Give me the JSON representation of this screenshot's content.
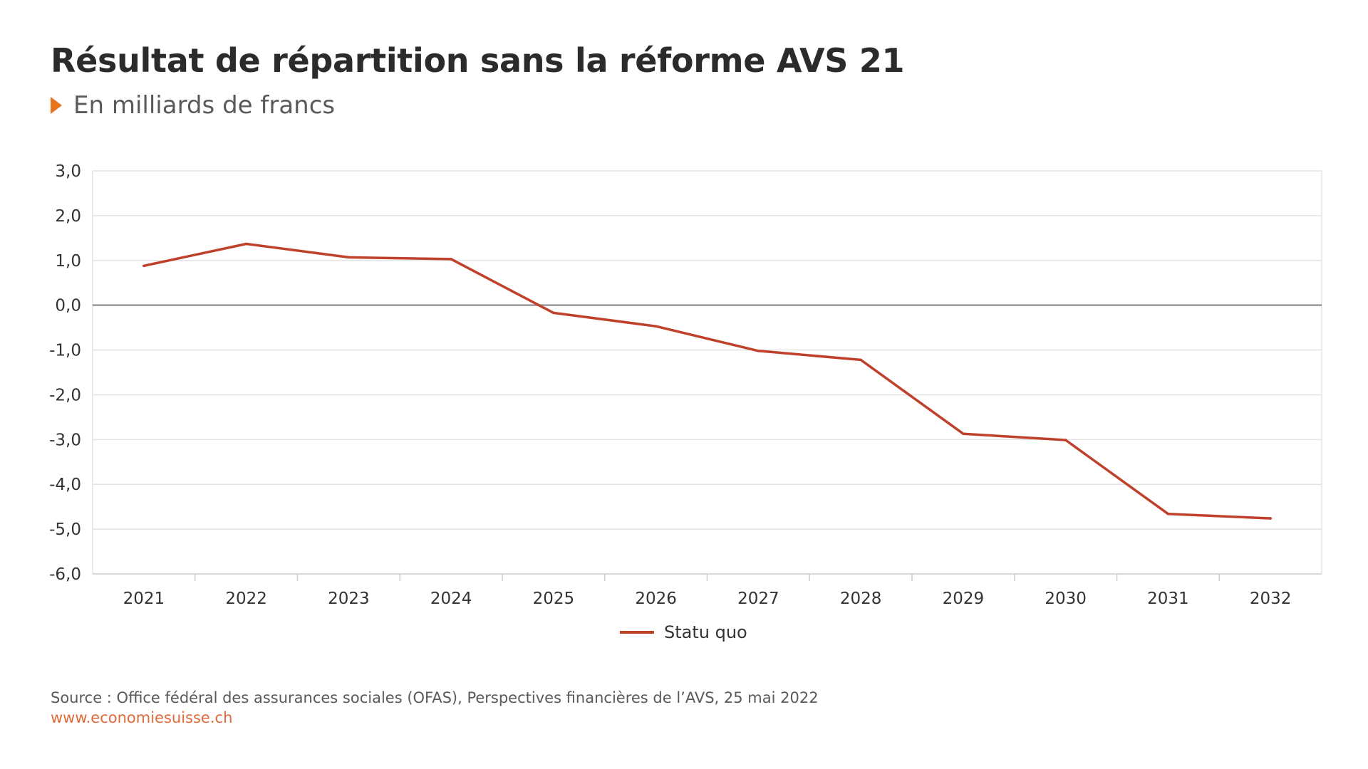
{
  "header": {
    "title": "Résultat de répartition sans la réforme AVS 21",
    "subtitle": "En milliards de francs"
  },
  "footer": {
    "source": "Source : Office fédéral des assurances sociales (OFAS), Perspectives financières de l’AVS, 25 mai 2022",
    "website": "www.economiesuisse.ch"
  },
  "colors": {
    "series": "#c0412b",
    "accent": "#e8741e",
    "website": "#e06a3a",
    "grid": "#e3e3e3",
    "zero_line": "#999999",
    "axis_text": "#333333"
  },
  "chart_data": {
    "type": "line",
    "title": "Résultat de répartition sans la réforme AVS 21",
    "subtitle": "En milliards de francs",
    "xlabel": "",
    "ylabel": "",
    "categories": [
      "2021",
      "2022",
      "2023",
      "2024",
      "2025",
      "2026",
      "2027",
      "2028",
      "2029",
      "2030",
      "2031",
      "2032"
    ],
    "y_ticks": [
      3.0,
      2.0,
      1.0,
      0.0,
      -1.0,
      -2.0,
      -3.0,
      -4.0,
      -5.0,
      -6.0
    ],
    "y_tick_labels": [
      "3,0",
      "2,0",
      "1,0",
      "0,0",
      "-1,0",
      "-2,0",
      "-3,0",
      "-4,0",
      "-5,0",
      "-6,0"
    ],
    "ylim": [
      -6.0,
      3.0
    ],
    "grid": true,
    "legend_position": "bottom-center",
    "series": [
      {
        "name": "Statu quo",
        "values": [
          0.88,
          1.37,
          1.07,
          1.03,
          -0.17,
          -0.47,
          -1.02,
          -1.22,
          -2.87,
          -3.01,
          -4.66,
          -4.76
        ]
      }
    ]
  }
}
